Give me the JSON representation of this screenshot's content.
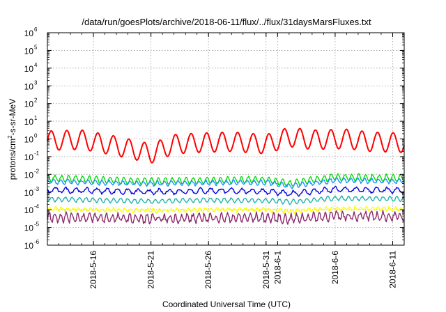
{
  "chart_data": {
    "type": "line",
    "title": "/data/run/goesPlots/archive/2018-06-11/flux/../flux/31daysMarsFluxes.txt",
    "xlabel": "Coordinated Universal Time (UTC)",
    "ylabel": "protons/cm²-s-sr-MeV",
    "ylabel_parts": {
      "pre": "protons/cm",
      "sup": "2",
      "post": "-s-sr-MeV"
    },
    "y_scale": "log",
    "ylim": [
      1e-06,
      1000000.0
    ],
    "y_ticks": [
      {
        "value": 1e-06,
        "base": "10",
        "exp": "-6"
      },
      {
        "value": 1e-05,
        "base": "10",
        "exp": "-5"
      },
      {
        "value": 0.0001,
        "base": "10",
        "exp": "-4"
      },
      {
        "value": 0.001,
        "base": "10",
        "exp": "-3"
      },
      {
        "value": 0.01,
        "base": "10",
        "exp": "-2"
      },
      {
        "value": 0.1,
        "base": "10",
        "exp": "-1"
      },
      {
        "value": 1,
        "base": "10",
        "exp": "0"
      },
      {
        "value": 10.0,
        "base": "10",
        "exp": "1"
      },
      {
        "value": 100.0,
        "base": "10",
        "exp": "2"
      },
      {
        "value": 1000.0,
        "base": "10",
        "exp": "3"
      },
      {
        "value": 10000.0,
        "base": "10",
        "exp": "4"
      },
      {
        "value": 100000.0,
        "base": "10",
        "exp": "5"
      },
      {
        "value": 1000000.0,
        "base": "10",
        "exp": "6"
      }
    ],
    "xlim": [
      "2018-05-12",
      "2018-06-12"
    ],
    "x_ticks": [
      "2018-5-16",
      "2018-5-21",
      "2018-5-26",
      "2018-5-31",
      "2018-6-1",
      "2018-6-6",
      "2018-6-11"
    ],
    "x_tick_dates": [
      "2018-05-16",
      "2018-05-21",
      "2018-05-26",
      "2018-05-31",
      "2018-06-01",
      "2018-06-06",
      "2018-06-11"
    ],
    "grid": true,
    "legend": "none",
    "series": [
      {
        "color": "#ff0000",
        "dates": [
          "2018-05-12",
          "2018-05-15",
          "2018-05-18",
          "2018-05-21",
          "2018-05-23",
          "2018-05-25",
          "2018-05-28",
          "2018-05-31",
          "2018-06-02",
          "2018-06-04",
          "2018-06-07",
          "2018-06-09",
          "2018-06-12"
        ],
        "values": [
          0.8,
          0.9,
          0.4,
          0.15,
          0.5,
          0.6,
          0.7,
          0.5,
          1.3,
          0.9,
          1.0,
          0.7,
          0.6
        ]
      },
      {
        "color": "#00dd00",
        "dates": [
          "2018-05-12",
          "2018-05-16",
          "2018-05-21",
          "2018-05-26",
          "2018-05-31",
          "2018-06-02",
          "2018-06-06",
          "2018-06-12"
        ],
        "values": [
          0.006,
          0.005,
          0.004,
          0.0045,
          0.005,
          0.003,
          0.007,
          0.006
        ]
      },
      {
        "color": "#1e90ff",
        "dates": [
          "2018-05-12",
          "2018-05-16",
          "2018-05-21",
          "2018-05-26",
          "2018-05-31",
          "2018-06-02",
          "2018-06-06",
          "2018-06-12"
        ],
        "values": [
          0.004,
          0.0035,
          0.003,
          0.0033,
          0.0035,
          0.0022,
          0.0045,
          0.004
        ]
      },
      {
        "color": "#0000dd",
        "dates": [
          "2018-05-12",
          "2018-05-16",
          "2018-05-21",
          "2018-05-26",
          "2018-05-31",
          "2018-06-02",
          "2018-06-06",
          "2018-06-12"
        ],
        "values": [
          0.0013,
          0.0012,
          0.001,
          0.0012,
          0.0011,
          0.0008,
          0.0014,
          0.0012
        ]
      },
      {
        "color": "#20b2aa",
        "dates": [
          "2018-05-12",
          "2018-05-16",
          "2018-05-21",
          "2018-05-26",
          "2018-05-31",
          "2018-06-02",
          "2018-06-06",
          "2018-06-12"
        ],
        "values": [
          0.0004,
          0.00035,
          0.0003,
          0.00035,
          0.00033,
          0.00028,
          0.00045,
          0.0004
        ]
      },
      {
        "color": "#ffff00",
        "dates": [
          "2018-05-12",
          "2018-05-16",
          "2018-05-21",
          "2018-05-26",
          "2018-05-31",
          "2018-06-02",
          "2018-06-06",
          "2018-06-12"
        ],
        "values": [
          0.00011,
          0.0001,
          9e-05,
          0.0001,
          0.0001,
          8e-05,
          0.00012,
          0.00011
        ]
      },
      {
        "color": "#8b2a6b",
        "dates": [
          "2018-05-12",
          "2018-05-16",
          "2018-05-21",
          "2018-05-26",
          "2018-05-31",
          "2018-06-02",
          "2018-06-06",
          "2018-06-12"
        ],
        "values": [
          4e-05,
          3.5e-05,
          3e-05,
          3.5e-05,
          3.5e-05,
          3e-05,
          4.5e-05,
          4e-05
        ]
      }
    ]
  }
}
